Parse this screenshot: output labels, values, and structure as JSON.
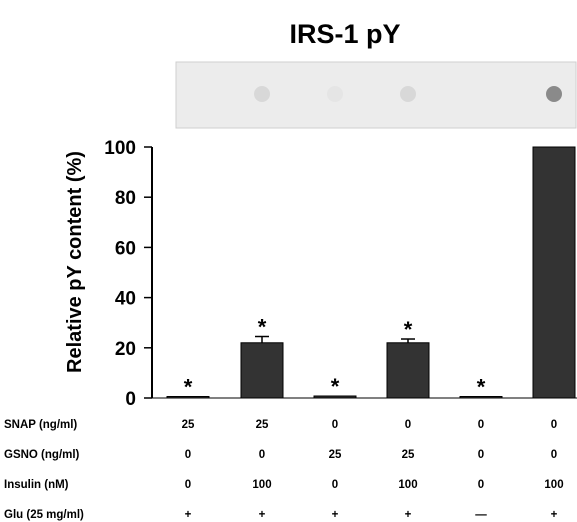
{
  "chart_data": {
    "type": "bar",
    "title": "IRS-1 pY",
    "ylabel": "Relative pY content (%)",
    "ylim": [
      0,
      100
    ],
    "yticks": [
      0,
      20,
      40,
      60,
      80,
      100
    ],
    "values": [
      0.3,
      22,
      0.8,
      22,
      0.3,
      100
    ],
    "errors": [
      0,
      2.5,
      0,
      1.5,
      0,
      0
    ],
    "significance": [
      "*",
      "*",
      "*",
      "*",
      "*",
      ""
    ],
    "bar_color": "#333333",
    "blot_dots": [
      0,
      0.15,
      0.05,
      0.15,
      0,
      0.75
    ],
    "conditions": [
      {
        "label": "SNAP (ng/ml)",
        "values": [
          "25",
          "25",
          "0",
          "0",
          "0",
          "0"
        ]
      },
      {
        "label": "GSNO (ng/ml)",
        "values": [
          "0",
          "0",
          "25",
          "25",
          "0",
          "0"
        ]
      },
      {
        "label": "Insulin (nM)",
        "values": [
          "0",
          "100",
          "0",
          "100",
          "0",
          "100"
        ]
      },
      {
        "label": "Glu (25 mg/ml)",
        "values": [
          "+",
          "+",
          "+",
          "+",
          "—",
          "+"
        ]
      }
    ]
  }
}
